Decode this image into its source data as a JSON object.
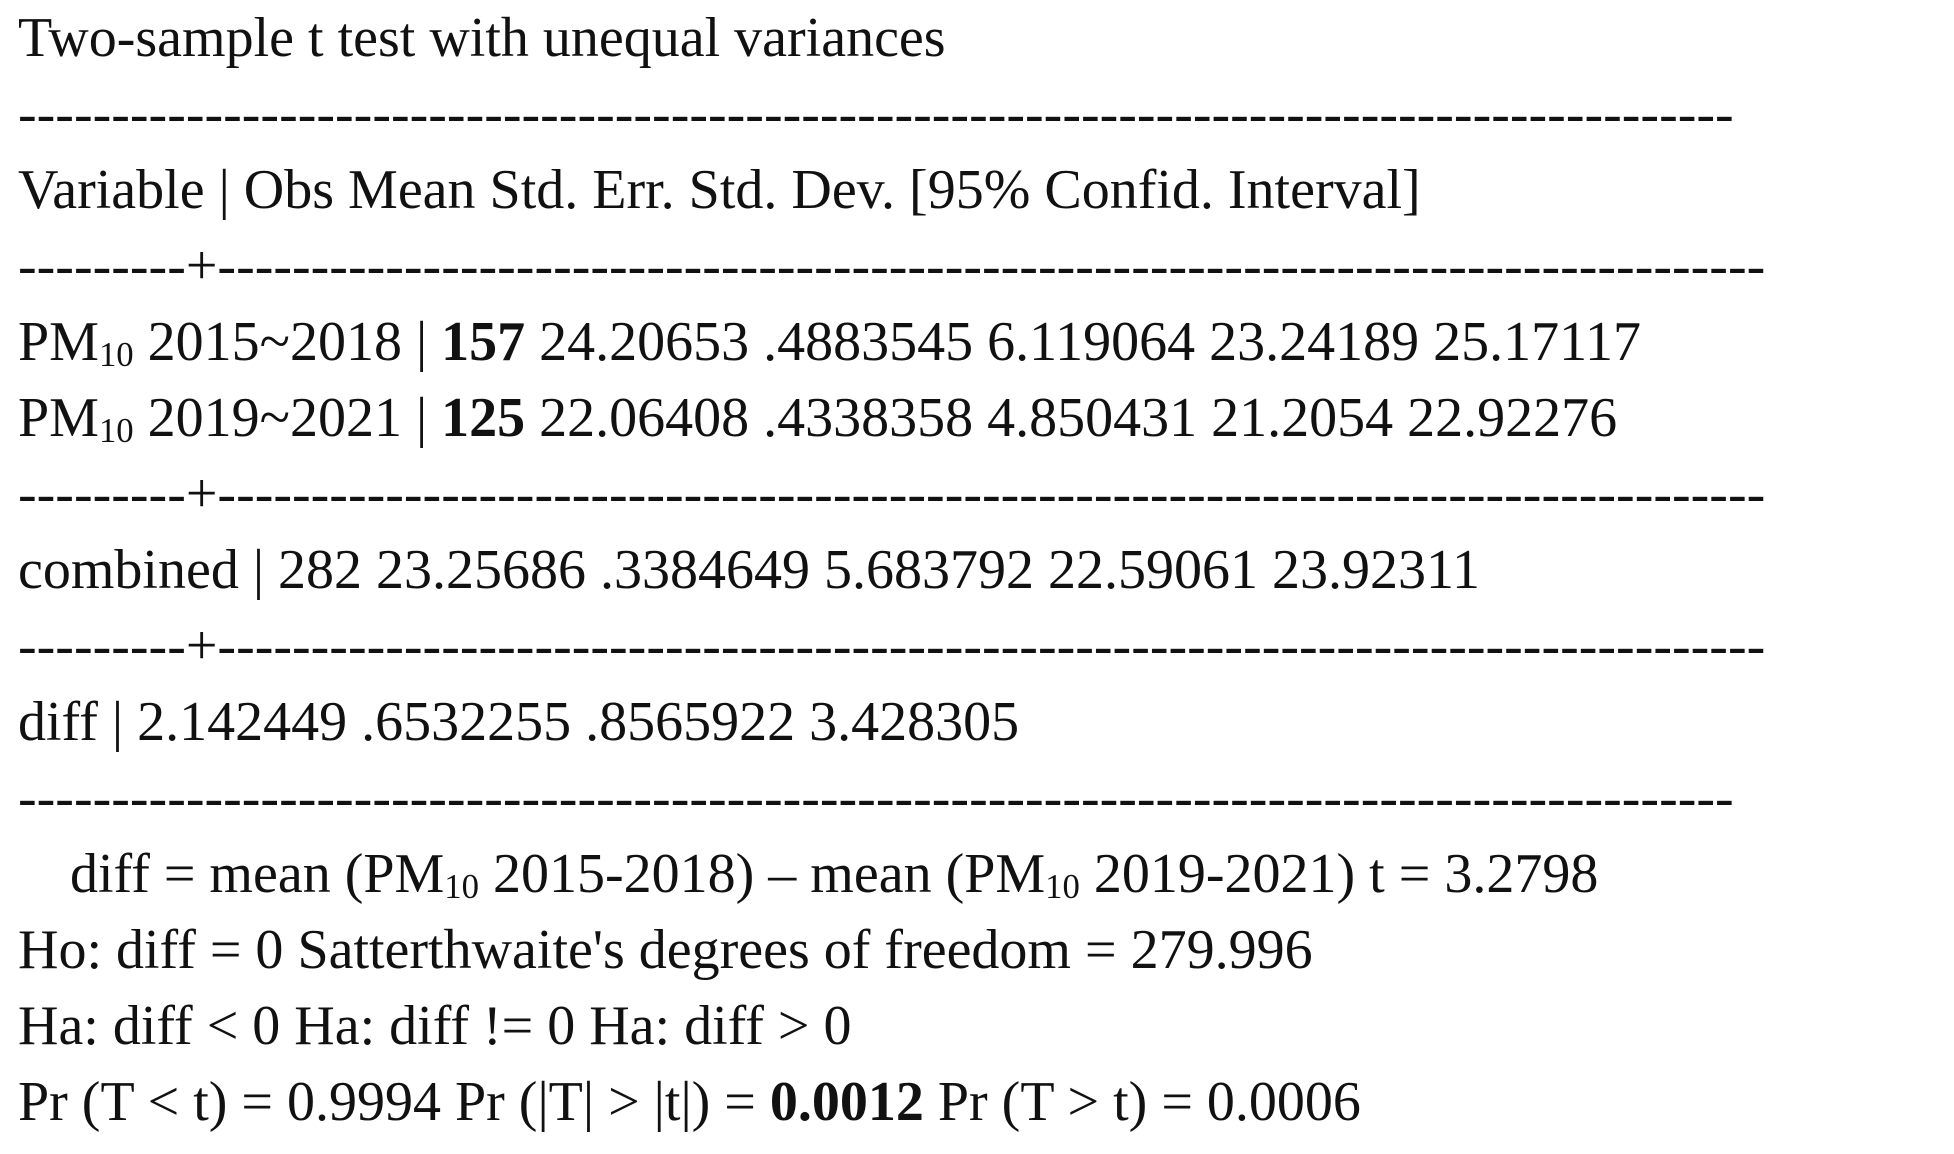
{
  "title": "Two-sample t test with unequal variances",
  "rule_plain": "--------------------------------------------------------------------------------------------",
  "rule_cross": "---------+-----------------------------------------------------------------------------------",
  "pipe": "|",
  "header": {
    "variable": "Variable",
    "columns": [
      "Obs",
      "Mean",
      "Std. Err.",
      "Std. Dev.",
      "[95% Confid. Interval]"
    ]
  },
  "groups": [
    {
      "prefix": "PM",
      "sub": "10",
      "period": "2015~2018",
      "obs": "157",
      "mean": "24.20653",
      "std_err": ".4883545",
      "std_dev": "6.119064",
      "ci_low": "23.24189",
      "ci_high": "25.17117"
    },
    {
      "prefix": "PM",
      "sub": "10",
      "period": "2019~2021",
      "obs": "125",
      "mean": "22.06408",
      "std_err": ".4338358",
      "std_dev": "4.850431",
      "ci_low": "21.2054",
      "ci_high": "22.92276"
    }
  ],
  "combined": {
    "label": "combined",
    "obs": "282",
    "mean": "23.25686",
    "std_err": ".3384649",
    "std_dev": "5.683792",
    "ci_low": "22.59061",
    "ci_high": "23.92311"
  },
  "diff": {
    "label": "diff",
    "mean": "2.142449",
    "std_err": ".6532255",
    "ci_low": ".8565922",
    "ci_high": "3.428305"
  },
  "footer": {
    "diff_def": {
      "a": "diff = mean (PM",
      "sub1": "10",
      "b": "2015-2018) – mean (PM",
      "sub2": "10",
      "c": "2019-2021)",
      "t": "t = 3.2798"
    },
    "ho": "Ho: diff = 0",
    "df": "Satterthwaite's degrees of freedom = 279.996",
    "ha": [
      "Ha: diff < 0",
      "Ha: diff != 0",
      "Ha: diff > 0"
    ],
    "pr_left": "Pr (T < t) = 0.9994",
    "pr_two_label": "Pr (|T| > |t|) =",
    "pr_two_value": "0.0012",
    "pr_right": "Pr (T > t) = 0.0006"
  }
}
